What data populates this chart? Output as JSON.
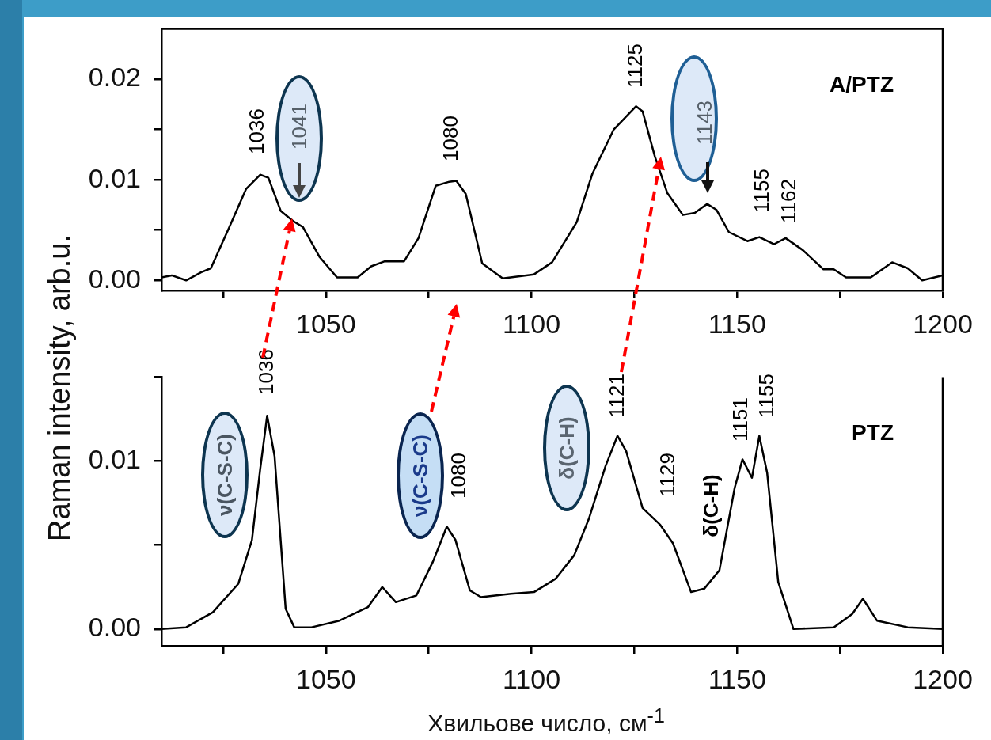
{
  "chart_data": [
    {
      "type": "line",
      "ylabel": "Raman intensity, arb.u.",
      "xlim": [
        1010,
        1200
      ],
      "xticks": [
        {
          "value": 1025,
          "label": null
        },
        1050,
        {
          "value": 1075,
          "label": null
        },
        1100,
        {
          "value": 1125,
          "label": null
        },
        1150,
        {
          "value": 1175,
          "label": null
        },
        1200
      ],
      "ylim": [
        -0.001,
        0.025
      ],
      "yticks": [
        {
          "value": 0,
          "label": "0.00"
        },
        {
          "value": 0.005,
          "label": null
        },
        {
          "value": 0.01,
          "label": "0.01"
        },
        {
          "value": 0.015,
          "label": null
        },
        {
          "value": 0.02,
          "label": "0.02"
        }
      ],
      "grid": false,
      "legend": false,
      "line_style": "solid",
      "marker": "none",
      "series": [
        {
          "name": "A/PTZ",
          "color": "#000000",
          "x": [
            1010,
            1012.5,
            1016,
            1019.6,
            1022,
            1026.5,
            1030.6,
            1034,
            1036,
            1039,
            1042,
            1044.4,
            1048.5,
            1052.7,
            1057.7,
            1061,
            1064.3,
            1069,
            1072.5,
            1076.7,
            1080,
            1081.7,
            1084,
            1088,
            1093,
            1100.6,
            1105,
            1111,
            1114.8,
            1120,
            1125.4,
            1127,
            1130,
            1133,
            1136.8,
            1139.7,
            1142.7,
            1145,
            1148,
            1152.5,
            1155.4,
            1159,
            1161.8,
            1166,
            1171,
            1173.5,
            1176.5,
            1182.5,
            1187.7,
            1191.5,
            1195,
            1200
          ],
          "values": [
            0.0003,
            0.0005,
            0,
            0.0008,
            0.0012,
            0.0053,
            0.0091,
            0.0105,
            0.0102,
            0.0069,
            0.0059,
            0.0053,
            0.0023,
            0.0003,
            0.0003,
            0.0014,
            0.0019,
            0.0019,
            0.0042,
            0.0094,
            0.0098,
            0.0099,
            0.0086,
            0.0017,
            0.0002,
            0.0006,
            0.0018,
            0.0058,
            0.0106,
            0.015,
            0.0173,
            0.0168,
            0.0123,
            0.0087,
            0.0065,
            0.0067,
            0.0076,
            0.007,
            0.0048,
            0.0039,
            0.0043,
            0.0036,
            0.0042,
            0.003,
            0.0011,
            0.0011,
            0.0003,
            0.0003,
            0.0018,
            0.0012,
            0,
            0.0005
          ]
        }
      ],
      "annotations": [
        "1036",
        "1041",
        "1080",
        "1125",
        "1143",
        "1155",
        "1162"
      ]
    },
    {
      "type": "line",
      "xlabel": "Хвильове число, см$^{-1}$",
      "xlim": [
        1010,
        1200
      ],
      "xticks": [
        {
          "value": 1025,
          "label": null
        },
        1050,
        {
          "value": 1075,
          "label": null
        },
        1100,
        {
          "value": 1125,
          "label": null
        },
        1150,
        {
          "value": 1175,
          "label": null
        },
        1200
      ],
      "ylim": [
        -0.001,
        0.015
      ],
      "yticks": [
        {
          "value": 0,
          "label": "0.00"
        },
        {
          "value": 0.005,
          "label": null
        },
        {
          "value": 0.01,
          "label": "0.01"
        },
        {
          "value": 0.015,
          "label": null
        }
      ],
      "grid": false,
      "legend": false,
      "line_style": "solid",
      "marker": "none",
      "series": [
        {
          "name": "PTZ",
          "color": "#000000",
          "x": [
            1010,
            1016,
            1022.5,
            1028.7,
            1032,
            1034,
            1035.7,
            1037.5,
            1040.2,
            1042.3,
            1046.5,
            1053.3,
            1060.2,
            1063.7,
            1067,
            1072,
            1076,
            1079.4,
            1081.5,
            1085,
            1087.7,
            1095,
            1100.6,
            1105.9,
            1110.4,
            1114,
            1118,
            1120.9,
            1123,
            1127,
            1131.3,
            1134.4,
            1138.8,
            1142,
            1145.7,
            1149.4,
            1151.3,
            1153.6,
            1155.4,
            1157.3,
            1160,
            1163.7,
            1173.5,
            1178,
            1180.6,
            1184,
            1191.5,
            1200
          ],
          "values": [
            0,
            0.0001,
            0.001,
            0.0027,
            0.0053,
            0.0095,
            0.0127,
            0.0103,
            0.0012,
            0.0001,
            0.0001,
            0.0005,
            0.0013,
            0.0025,
            0.0016,
            0.002,
            0.004,
            0.0061,
            0.0053,
            0.0023,
            0.0019,
            0.0021,
            0.0022,
            0.003,
            0.0044,
            0.0066,
            0.0097,
            0.0115,
            0.0106,
            0.0072,
            0.0062,
            0.0051,
            0.0022,
            0.0024,
            0.0035,
            0.0084,
            0.0101,
            0.009,
            0.0115,
            0.0093,
            0.0028,
            0,
            0.0001,
            0.0009,
            0.0018,
            0.0005,
            0.0001,
            0
          ]
        }
      ],
      "annotations": [
        "1036",
        "1080",
        "ν(C-S-C)",
        "ν(C-S-C)",
        "δ(C-H)",
        "1121",
        "1129",
        "δ(C-H)",
        "1151",
        "1155"
      ]
    }
  ]
}
